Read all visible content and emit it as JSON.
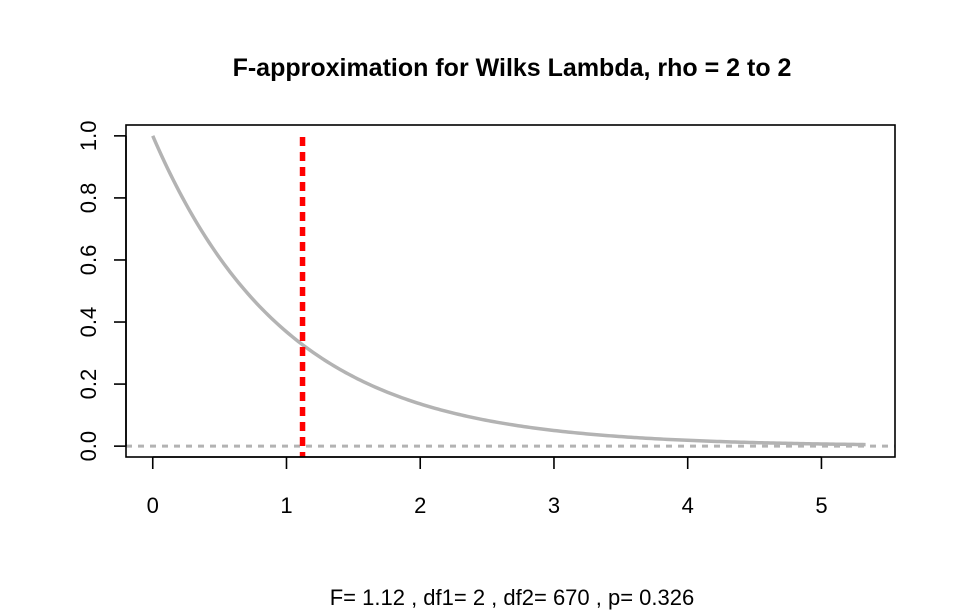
{
  "chart_data": {
    "type": "line",
    "title": "F-approximation for Wilks Lambda, rho = 2 to 2",
    "xlabel": "F= 1.12 , df1= 2 , df2= 670 , p= 0.326",
    "ylabel": "",
    "xlim": [
      -0.2,
      5.55
    ],
    "ylim": [
      -0.035,
      1.035
    ],
    "x_ticks": [
      "0",
      "1",
      "2",
      "3",
      "4",
      "5"
    ],
    "y_ticks": [
      "0.0",
      "0.2",
      "0.4",
      "0.6",
      "0.8",
      "1.0"
    ],
    "grid": false,
    "legend": "none",
    "curve": {
      "name": "",
      "description": "upper-tail probability of F(2, 670)",
      "df1": 2,
      "df2": 670,
      "x_range": [
        0,
        5.33
      ],
      "color": "#b3b3b3"
    },
    "observed_F": {
      "value": 1.12,
      "color": "#ff0000",
      "style": "dotted"
    },
    "reference_line": {
      "y": 0,
      "color": "#b3b3b3",
      "style": "dotted"
    }
  }
}
